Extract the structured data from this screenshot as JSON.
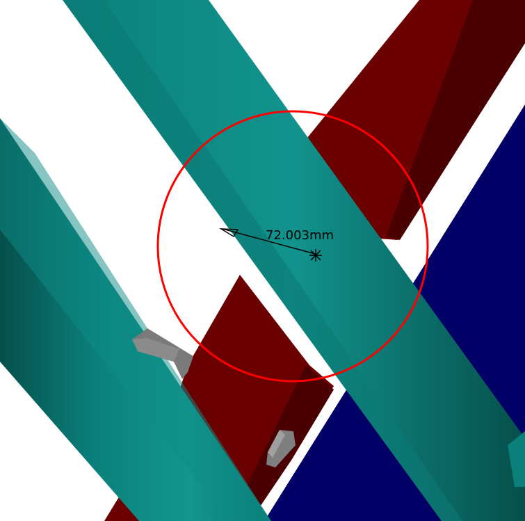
{
  "viewport": {
    "background_color": "#ffffff"
  },
  "colors": {
    "tube_teal": "#0b807b",
    "tube_teal_shadow": "#075a56",
    "tube_teal_highlight": "#1aa39c",
    "frame_maroon": "#6b0000",
    "frame_maroon_shadow": "#420000",
    "frame_maroon_highlight": "#8a0b0b",
    "base_navy": "#000066",
    "bracket_gray": "#7a7a7a",
    "bracket_gray_dark": "#505050",
    "measure_circle_red": "#ff0000",
    "dimension_black": "#000000"
  },
  "measurement": {
    "label": "72.003mm",
    "type": "radius",
    "unit": "mm",
    "value": 72.003
  },
  "icons": {
    "center_marker": "asterisk-center-icon",
    "arrow_head": "dimension-arrowhead-icon"
  }
}
